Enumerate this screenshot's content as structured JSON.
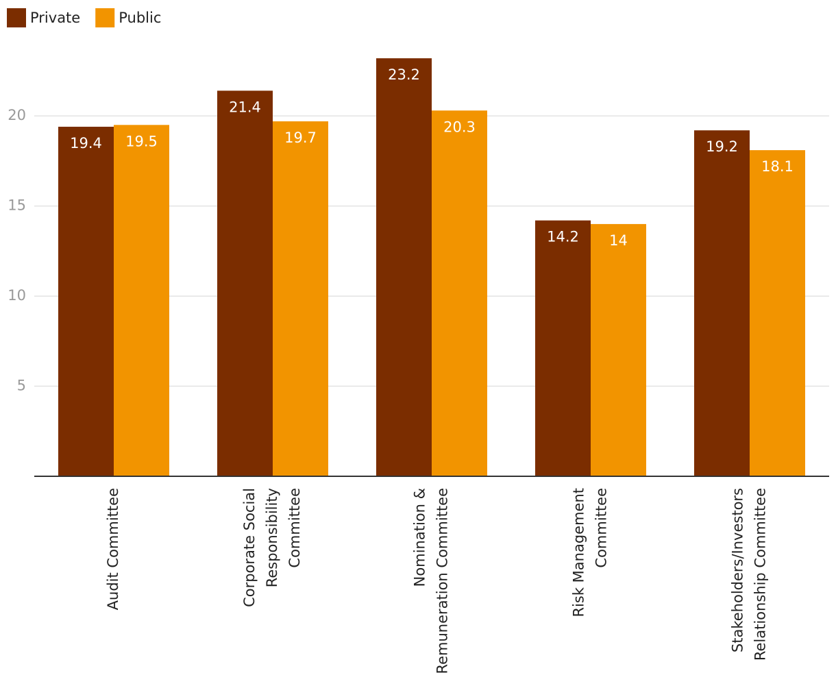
{
  "chart_data": {
    "type": "bar",
    "categories": [
      "Audit Committee",
      "Corporate Social Responsibility Committee",
      "Nomination & Remuneration Committee",
      "Risk Management Committee",
      "Stakeholders/Investors Relationship Committee"
    ],
    "series": [
      {
        "name": "Private",
        "color": "#7b2d00",
        "values": [
          19.4,
          21.4,
          23.2,
          14.2,
          19.2
        ]
      },
      {
        "name": "Public",
        "color": "#f29400",
        "values": [
          19.5,
          19.7,
          20.3,
          14,
          18.1
        ]
      }
    ],
    "ylim": [
      0,
      24
    ],
    "yticks": [
      5,
      10,
      15,
      20
    ],
    "grid": true,
    "legend": "top-left"
  }
}
